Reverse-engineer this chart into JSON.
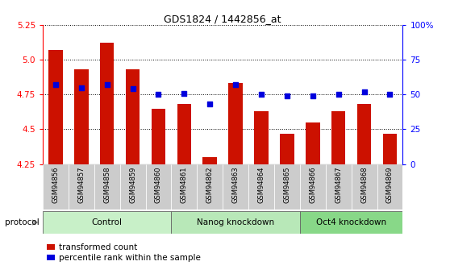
{
  "title": "GDS1824 / 1442856_at",
  "samples": [
    "GSM94856",
    "GSM94857",
    "GSM94858",
    "GSM94859",
    "GSM94860",
    "GSM94861",
    "GSM94862",
    "GSM94863",
    "GSM94864",
    "GSM94865",
    "GSM94866",
    "GSM94867",
    "GSM94868",
    "GSM94869"
  ],
  "transformed_count": [
    5.07,
    4.93,
    5.12,
    4.93,
    4.65,
    4.68,
    4.3,
    4.83,
    4.63,
    4.47,
    4.55,
    4.63,
    4.68,
    4.47
  ],
  "percentile_rank": [
    57,
    55,
    57,
    54,
    50,
    51,
    43,
    57,
    50,
    49,
    49,
    50,
    52,
    50
  ],
  "groups": [
    {
      "label": "Control",
      "start": 0,
      "end": 5,
      "color": "#c8f0c8"
    },
    {
      "label": "Nanog knockdown",
      "start": 5,
      "end": 10,
      "color": "#b8e8b8"
    },
    {
      "label": "Oct4 knockdown",
      "start": 10,
      "end": 14,
      "color": "#88d888"
    }
  ],
  "bar_color": "#cc1100",
  "dot_color": "#0000dd",
  "ylim_left": [
    4.25,
    5.25
  ],
  "ylim_right": [
    0,
    100
  ],
  "yticks_left": [
    4.25,
    4.5,
    4.75,
    5.0,
    5.25
  ],
  "yticks_right": [
    0,
    25,
    50,
    75,
    100
  ],
  "legend_items": [
    "transformed count",
    "percentile rank within the sample"
  ]
}
